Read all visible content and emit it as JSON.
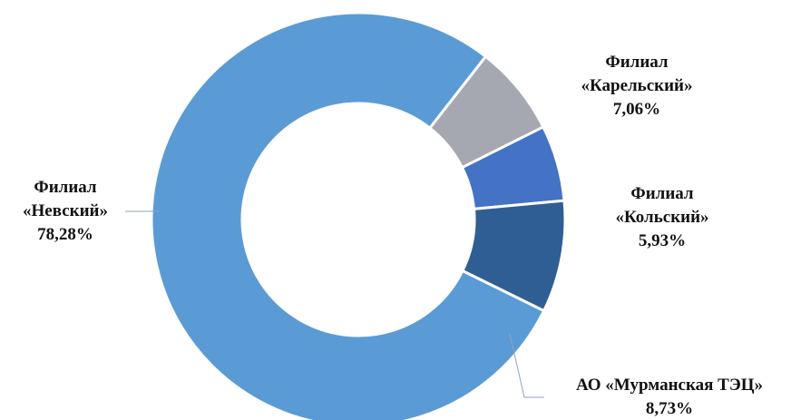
{
  "chart_data": {
    "type": "pie",
    "variant": "donut",
    "series": [
      {
        "name": "Филиал «Невский»",
        "line1": "Филиал",
        "line2": "«Невский»",
        "value_label": "78,28%",
        "value": 78.28,
        "color": "#5b9bd5"
      },
      {
        "name": "Филиал «Карельский»",
        "line1": "Филиал",
        "line2": "«Карельский»",
        "value_label": "7,06%",
        "value": 7.06,
        "color": "#a5a8b0"
      },
      {
        "name": "Филиал «Кольский»",
        "line1": "Филиал",
        "line2": "«Кольский»",
        "value_label": "5,93%",
        "value": 5.93,
        "color": "#4472c4"
      },
      {
        "name": "АО «Мурманская ТЭЦ»",
        "line1": "АО «Мурманская ТЭЦ»",
        "line2": "",
        "value_label": "8,73%",
        "value": 8.73,
        "color": "#2f5e94"
      }
    ],
    "legend": "none",
    "data_labels": "outside"
  }
}
